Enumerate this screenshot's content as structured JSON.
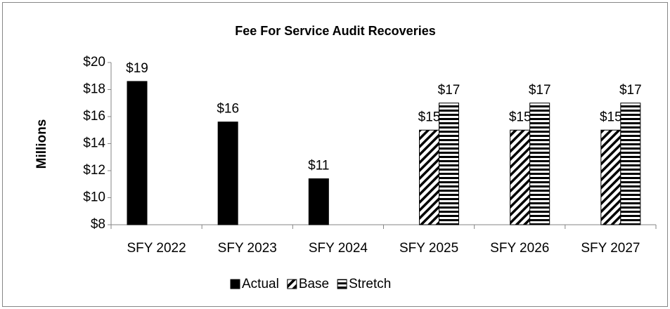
{
  "chart_data": {
    "type": "bar",
    "title": "Fee For Service Audit Recoveries",
    "y_label": "Millions",
    "categories": [
      "SFY 2022",
      "SFY 2023",
      "SFY 2024",
      "SFY 2025",
      "SFY 2026",
      "SFY 2027"
    ],
    "series": [
      {
        "name": "Actual",
        "color": "#000000",
        "pattern": "solid",
        "values": [
          18.6,
          15.6,
          11.4,
          null,
          null,
          null
        ],
        "value_labels": [
          "$19",
          "$16",
          "$11",
          null,
          null,
          null
        ]
      },
      {
        "name": "Base",
        "color": "#000000",
        "pattern": "diagonal",
        "values": [
          null,
          null,
          null,
          15,
          15,
          15
        ],
        "value_labels": [
          null,
          null,
          null,
          "$15",
          "$15",
          "$15"
        ]
      },
      {
        "name": "Stretch",
        "color": "#000000",
        "pattern": "horizontal",
        "values": [
          null,
          null,
          null,
          17,
          17,
          17
        ],
        "value_labels": [
          null,
          null,
          null,
          "$17",
          "$17",
          "$17"
        ]
      }
    ],
    "ylim": [
      8,
      20
    ],
    "yticks": [
      {
        "value": 8,
        "label": "$8"
      },
      {
        "value": 10,
        "label": "$10"
      },
      {
        "value": 12,
        "label": "$12"
      },
      {
        "value": 14,
        "label": "$14"
      },
      {
        "value": 16,
        "label": "$16"
      },
      {
        "value": 18,
        "label": "$18"
      },
      {
        "value": 20,
        "label": "$20"
      }
    ],
    "grid": false,
    "legend": "bottom"
  }
}
